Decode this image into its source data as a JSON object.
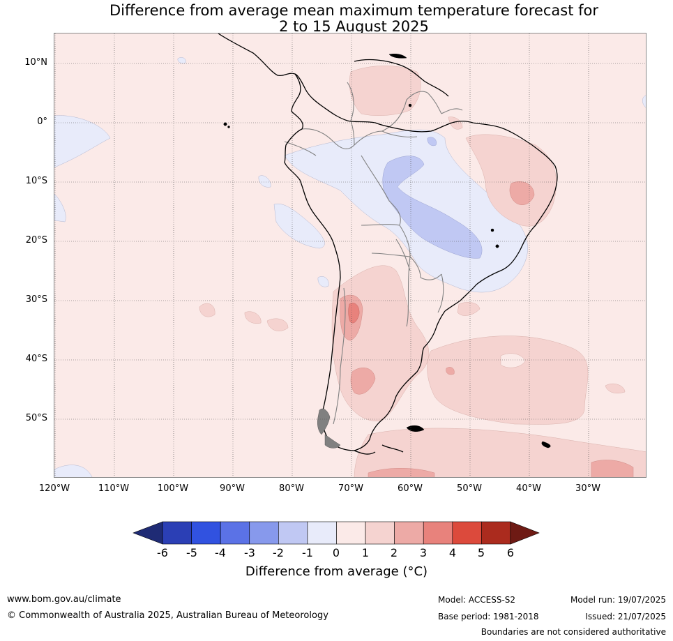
{
  "title": {
    "line1": "Difference from average mean maximum temperature forecast for",
    "line2": "2 to 15 August 2025"
  },
  "map": {
    "lat_labels": [
      "10°N",
      "0°",
      "10°S",
      "20°S",
      "30°S",
      "40°S",
      "50°S"
    ],
    "lon_labels": [
      "120°W",
      "110°W",
      "100°W",
      "90°W",
      "80°W",
      "70°W",
      "60°W",
      "50°W",
      "40°W",
      "30°W"
    ]
  },
  "colorbar": {
    "ticks": [
      "-6",
      "-5",
      "-4",
      "-3",
      "-2",
      "-1",
      "0",
      "1",
      "2",
      "3",
      "4",
      "5",
      "6"
    ],
    "colors": [
      "#1f2b75",
      "#2b3fb5",
      "#3152e0",
      "#5b72e6",
      "#8799ec",
      "#c0c8f3",
      "#e8ebfa",
      "#fbeae8",
      "#f5d3d0",
      "#edaaa6",
      "#e8827c",
      "#dc4a3c",
      "#ab2b1e",
      "#6e1a14"
    ],
    "label": "Difference from average (°C)"
  },
  "footer": {
    "website": "www.bom.gov.au/climate",
    "copyright": "© Commonwealth of Australia 2025, Australian Bureau of Meteorology",
    "model": "Model: ACCESS-S2",
    "base_period": "Base period: 1981-2018",
    "model_run": "Model run: 19/07/2025",
    "issued": "Issued: 21/07/2025",
    "disclaimer": "Boundaries are not considered authoritative"
  }
}
